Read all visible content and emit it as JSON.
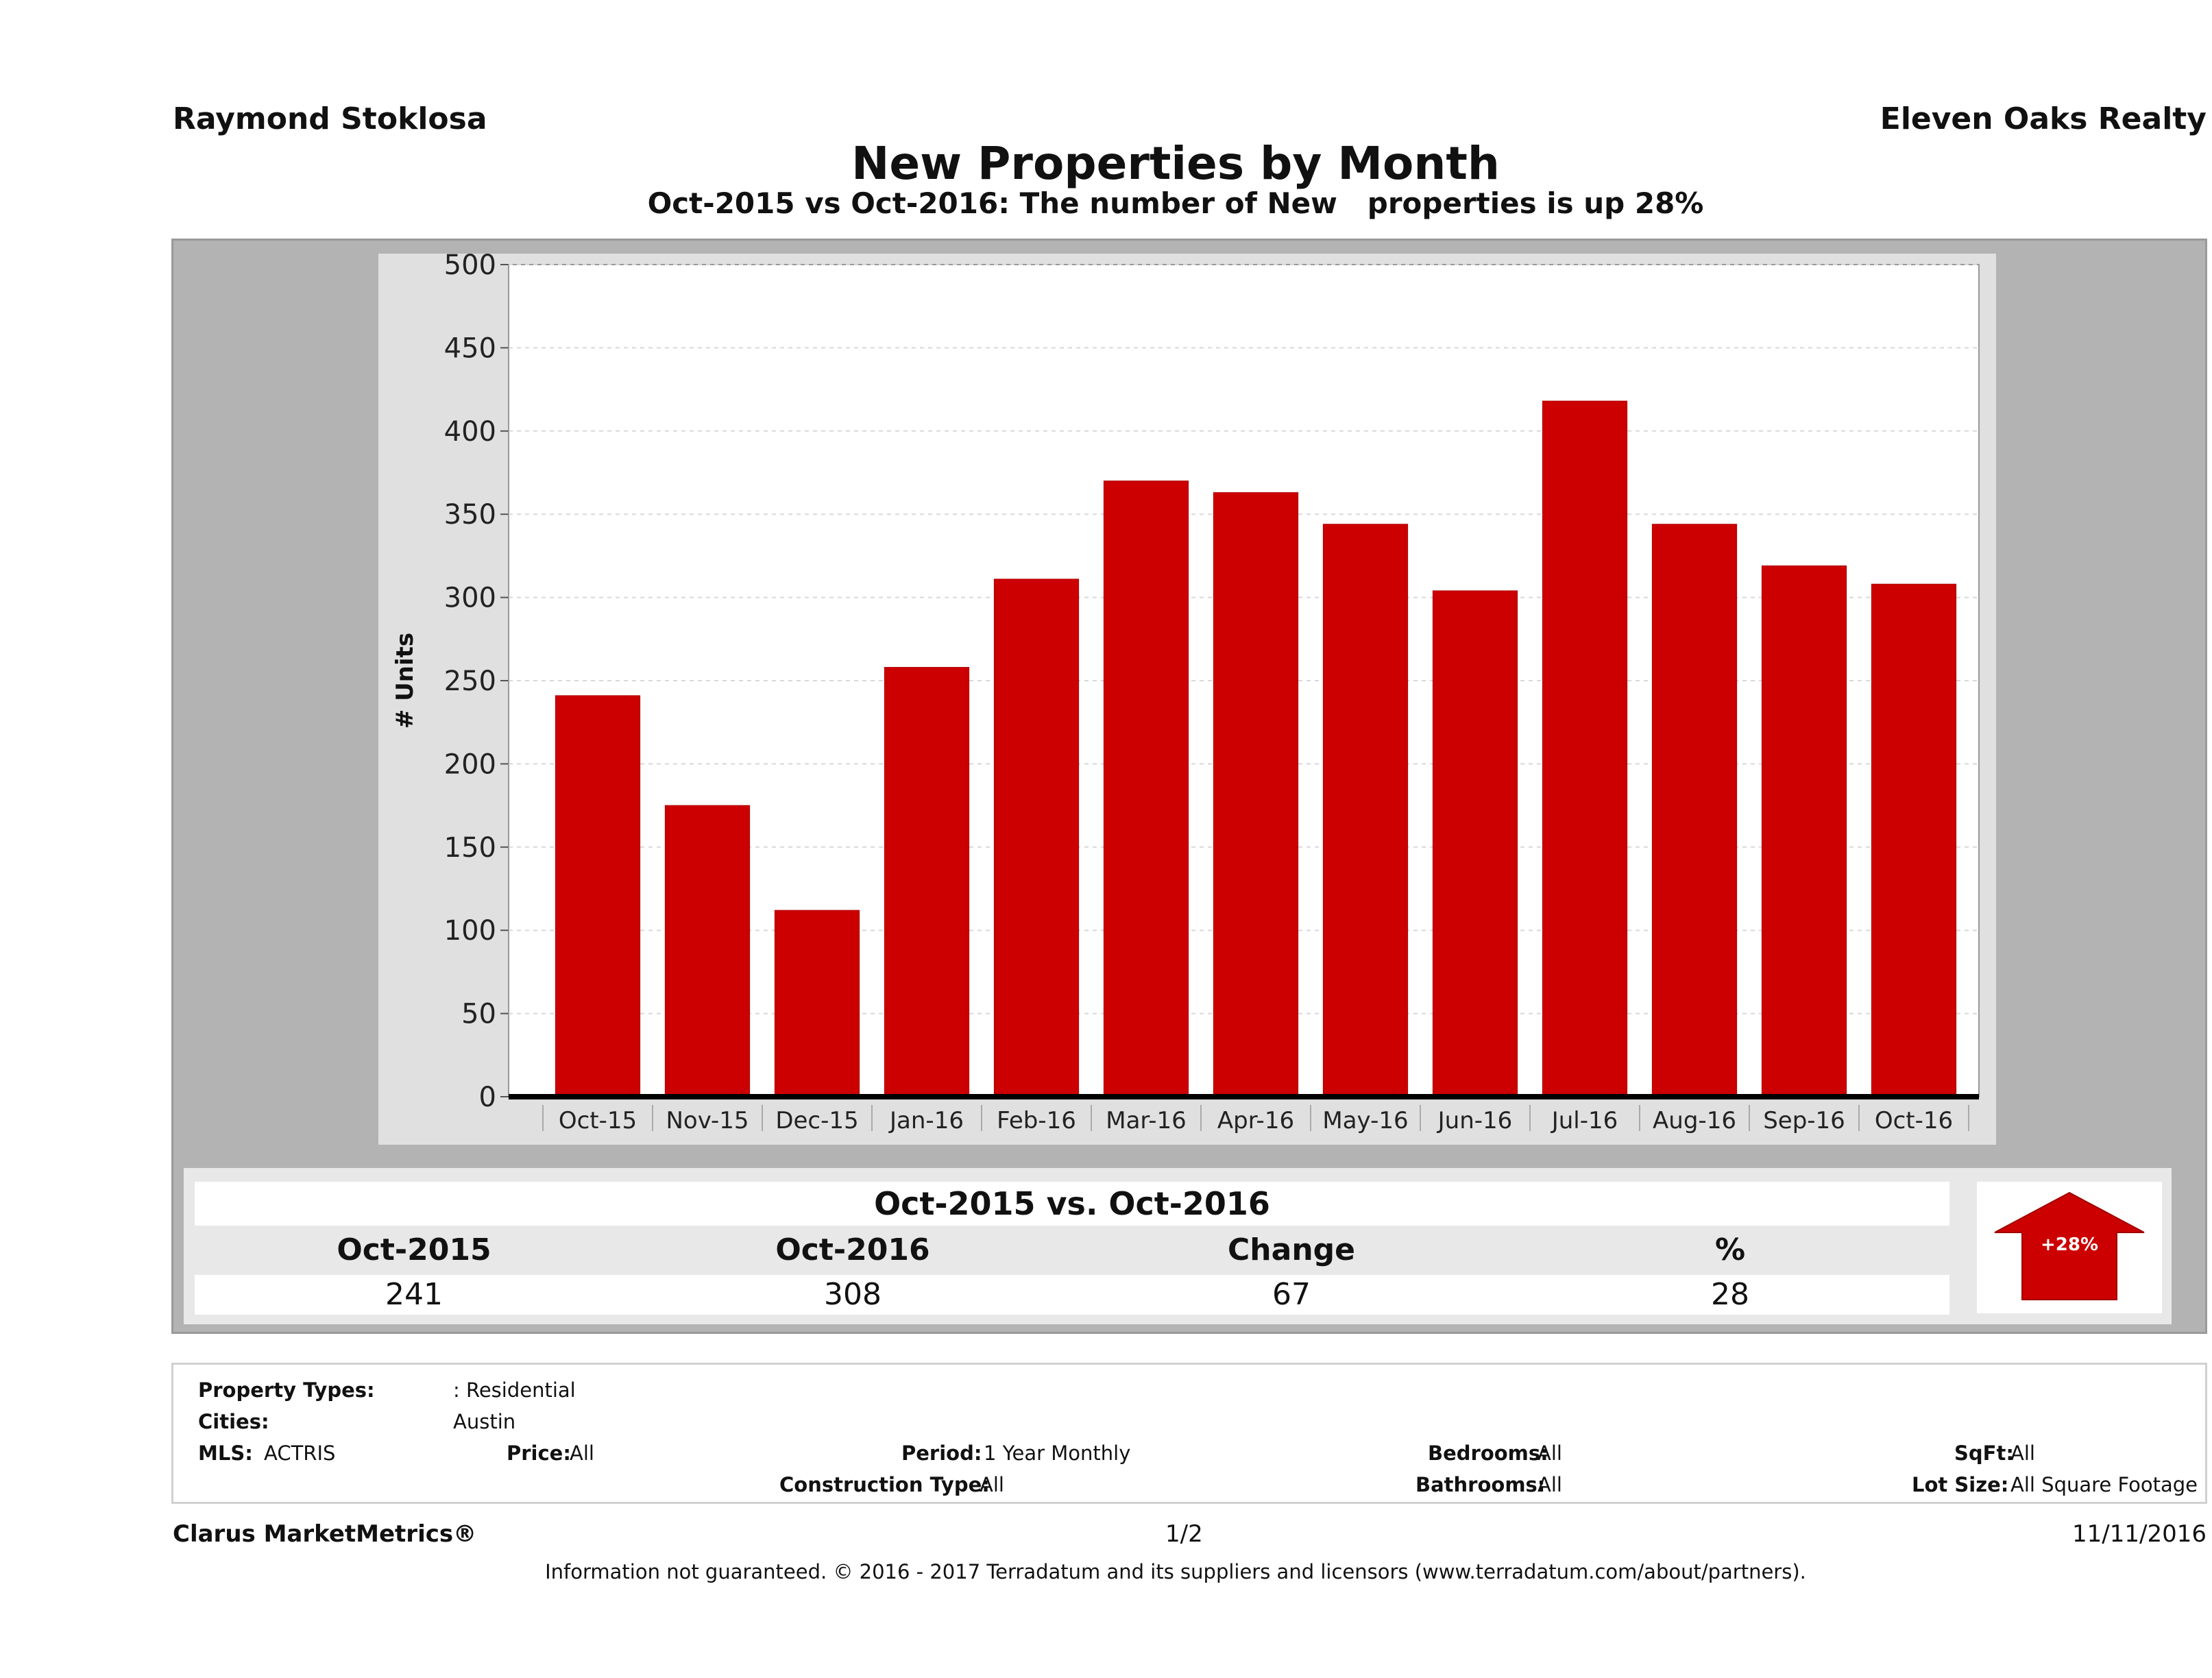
{
  "header": {
    "agent_name": "Raymond Stoklosa",
    "brokerage": "Eleven Oaks Realty",
    "title": "New Properties by Month",
    "subtitle": "Oct-2015 vs Oct-2016: The number of New   properties is up 28%"
  },
  "chart_data": {
    "type": "bar",
    "title": "New Properties by Month",
    "xlabel": "",
    "ylabel": "# Units",
    "ylim": [
      0,
      500
    ],
    "yticks": [
      0,
      50,
      100,
      150,
      200,
      250,
      300,
      350,
      400,
      450,
      500
    ],
    "grid": true,
    "legend": "none",
    "bar_color": "#cc0000",
    "categories": [
      "Oct-15",
      "Nov-15",
      "Dec-15",
      "Jan-16",
      "Feb-16",
      "Mar-16",
      "Apr-16",
      "May-16",
      "Jun-16",
      "Jul-16",
      "Aug-16",
      "Sep-16",
      "Oct-16"
    ],
    "values": [
      241,
      175,
      112,
      258,
      311,
      370,
      363,
      344,
      304,
      418,
      344,
      319,
      308
    ]
  },
  "summary": {
    "title": "Oct-2015 vs. Oct-2016",
    "headers": [
      "Oct-2015",
      "Oct-2016",
      "Change",
      "%"
    ],
    "values": [
      "241",
      "308",
      "67",
      "28"
    ],
    "badge": "+28%",
    "badge_color": "#cc0000"
  },
  "filters": {
    "property_types_label": "Property Types:",
    "property_types_value": ": Residential",
    "cities_label": "Cities:",
    "cities_value": "Austin",
    "mls_label": "MLS:",
    "mls_value": "ACTRIS",
    "price_label": "Price:",
    "price_value": "All",
    "period_label": "Period:",
    "period_value": "1 Year Monthly",
    "construction_label": "Construction Type:",
    "construction_value": "All",
    "bedrooms_label": "Bedrooms:",
    "bedrooms_value": "All",
    "bathrooms_label": "Bathrooms:",
    "bathrooms_value": "All",
    "sqft_label": "SqFt:",
    "sqft_value": "All",
    "lot_label": "Lot Size:",
    "lot_value": "All Square Footage"
  },
  "footer": {
    "product": "Clarus MarketMetrics®",
    "page": "1/2",
    "date": "11/11/2016",
    "disclaimer": "Information not guaranteed. © 2016 - 2017 Terradatum and its suppliers and licensors (www.terradatum.com/about/partners)."
  }
}
